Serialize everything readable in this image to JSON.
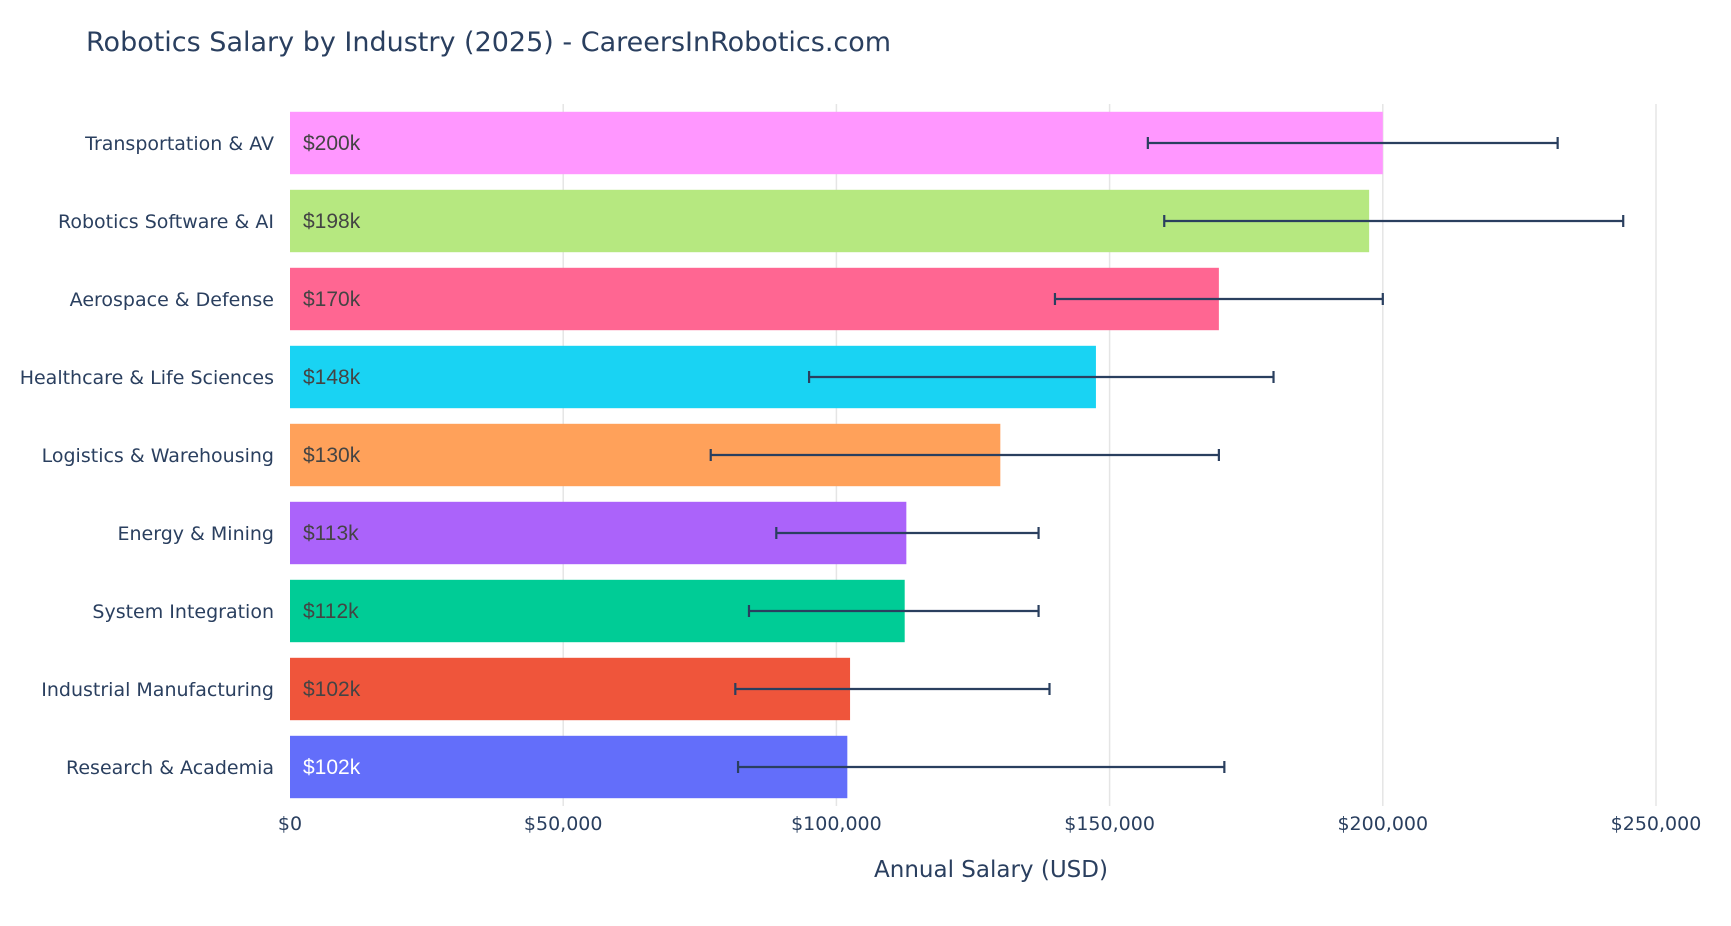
{
  "chart_data": {
    "type": "bar",
    "orientation": "horizontal",
    "title": "Robotics Salary by Industry (2025) - CareersInRobotics.com",
    "xlabel": "Annual Salary (USD)",
    "ylabel": "",
    "xlim": [
      0,
      250000
    ],
    "grid": true,
    "x_ticks": [
      "$0",
      "$50,000",
      "$100,000",
      "$150,000",
      "$200,000",
      "$250,000"
    ],
    "x_tick_values": [
      0,
      50000,
      100000,
      150000,
      200000,
      250000
    ],
    "categories": [
      "Transportation & AV",
      "Robotics Software & AI",
      "Aerospace & Defense",
      "Healthcare & Life Sciences",
      "Logistics & Warehousing",
      "Energy & Mining",
      "System Integration",
      "Industrial Manufacturing",
      "Research & Academia"
    ],
    "values": [
      200000,
      197500,
      170000,
      147500,
      130000,
      112800,
      112500,
      102500,
      102000
    ],
    "data_labels": [
      "$200k",
      "$198k",
      "$170k",
      "$148k",
      "$130k",
      "$113k",
      "$112k",
      "$102k",
      "$102k"
    ],
    "error_low": [
      157000,
      160000,
      140000,
      95000,
      77000,
      89000,
      84000,
      81500,
      82000
    ],
    "error_high": [
      232000,
      244000,
      200000,
      180000,
      170000,
      137000,
      137000,
      139000,
      171000
    ],
    "colors": [
      "#FF97FF",
      "#B6E880",
      "#FF6692",
      "#19D3F3",
      "#FFA15A",
      "#AB63FA",
      "#00CC96",
      "#EF553B",
      "#636EFA"
    ],
    "label_colors": [
      "#444444",
      "#444444",
      "#444444",
      "#444444",
      "#444444",
      "#444444",
      "#444444",
      "#444444",
      "#ffffff"
    ],
    "error_bar_color": "#2a3f5f",
    "legend": "none"
  }
}
